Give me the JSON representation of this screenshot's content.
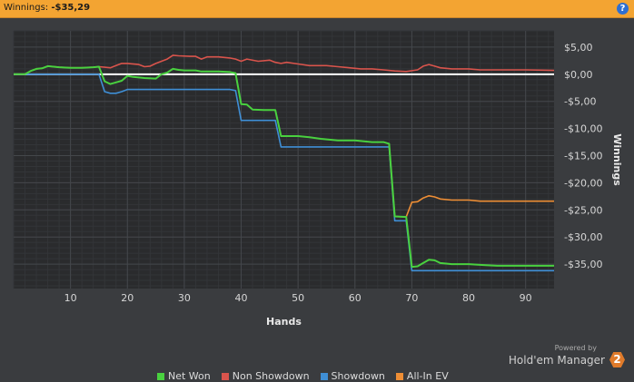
{
  "header": {
    "label": "Winnings:",
    "amount": "-$35,29",
    "help_label": "?"
  },
  "branding": {
    "powered_by": "Powered by",
    "name": "Hold'em Manager",
    "badge": "2"
  },
  "colors": {
    "net_won": "#49d13f",
    "non_showdown": "#d9544c",
    "showdown": "#3f8fd6",
    "all_in_ev": "#ee8e35",
    "zero_line": "#ffffff"
  },
  "chart_data": {
    "type": "line",
    "title": "",
    "xlabel": "Hands",
    "ylabel": "Winnings",
    "xlim": [
      0,
      95
    ],
    "ylim": [
      -39.5,
      8
    ],
    "grid": true,
    "legend_position": "bottom",
    "x_ticks": [
      10,
      20,
      30,
      40,
      50,
      60,
      70,
      80,
      90
    ],
    "x_tick_labels": [
      "10",
      "20",
      "30",
      "40",
      "50",
      "60",
      "70",
      "80",
      "90"
    ],
    "y_ticks": [
      5,
      0,
      -5,
      -10,
      -15,
      -20,
      -25,
      -30,
      -35
    ],
    "y_tick_labels": [
      "$5,00",
      "$0,00",
      "-$5,00",
      "-$10,00",
      "-$15,00",
      "-$20,00",
      "-$25,00",
      "-$30,00",
      "-$35,00"
    ],
    "series": [
      {
        "name": "Net Won",
        "color": "#49d13f",
        "points": [
          [
            0,
            0
          ],
          [
            2,
            0
          ],
          [
            3,
            0.6
          ],
          [
            4,
            1
          ],
          [
            5,
            1.1
          ],
          [
            6,
            1.5
          ],
          [
            8,
            1.3
          ],
          [
            10,
            1.2
          ],
          [
            12,
            1.2
          ],
          [
            14,
            1.3
          ],
          [
            15,
            1.4
          ],
          [
            16,
            -1.3
          ],
          [
            17,
            -1.8
          ],
          [
            18,
            -1.5
          ],
          [
            19,
            -1.2
          ],
          [
            20,
            -0.3
          ],
          [
            21,
            -0.5
          ],
          [
            23,
            -0.7
          ],
          [
            25,
            -0.8
          ],
          [
            26,
            0.0
          ],
          [
            27,
            0.3
          ],
          [
            28,
            1.0
          ],
          [
            29,
            0.8
          ],
          [
            30,
            0.7
          ],
          [
            32,
            0.7
          ],
          [
            33,
            0.5
          ],
          [
            36,
            0.5
          ],
          [
            38,
            0.4
          ],
          [
            39,
            0.2
          ],
          [
            40,
            -5.5
          ],
          [
            41,
            -5.6
          ],
          [
            42,
            -6.5
          ],
          [
            44,
            -6.6
          ],
          [
            46,
            -6.6
          ],
          [
            47,
            -11.4
          ],
          [
            48,
            -11.4
          ],
          [
            50,
            -11.4
          ],
          [
            52,
            -11.6
          ],
          [
            54,
            -11.9
          ],
          [
            57,
            -12.2
          ],
          [
            60,
            -12.2
          ],
          [
            63,
            -12.5
          ],
          [
            65,
            -12.5
          ],
          [
            66,
            -12.8
          ],
          [
            67,
            -26.2
          ],
          [
            69,
            -26.3
          ],
          [
            70,
            -35.5
          ],
          [
            71,
            -35.4
          ],
          [
            72,
            -34.8
          ],
          [
            73,
            -34.2
          ],
          [
            74,
            -34.3
          ],
          [
            75,
            -34.8
          ],
          [
            77,
            -35.0
          ],
          [
            80,
            -35.0
          ],
          [
            83,
            -35.2
          ],
          [
            85,
            -35.3
          ],
          [
            90,
            -35.3
          ],
          [
            95,
            -35.3
          ]
        ]
      },
      {
        "name": "Non Showdown",
        "color": "#d9544c",
        "points": [
          [
            0,
            0
          ],
          [
            2,
            0
          ],
          [
            3,
            0.6
          ],
          [
            4,
            1
          ],
          [
            5,
            1.1
          ],
          [
            6,
            1.5
          ],
          [
            8,
            1.3
          ],
          [
            10,
            1.2
          ],
          [
            12,
            1.2
          ],
          [
            14,
            1.3
          ],
          [
            15,
            1.4
          ],
          [
            16,
            1.3
          ],
          [
            17,
            1.2
          ],
          [
            18,
            1.6
          ],
          [
            19,
            2.0
          ],
          [
            20,
            2.0
          ],
          [
            22,
            1.8
          ],
          [
            23,
            1.4
          ],
          [
            24,
            1.5
          ],
          [
            25,
            2.0
          ],
          [
            26,
            2.4
          ],
          [
            27,
            2.8
          ],
          [
            28,
            3.5
          ],
          [
            29,
            3.4
          ],
          [
            31,
            3.3
          ],
          [
            32,
            3.3
          ],
          [
            33,
            2.8
          ],
          [
            34,
            3.2
          ],
          [
            36,
            3.2
          ],
          [
            38,
            3.0
          ],
          [
            39,
            2.8
          ],
          [
            40,
            2.4
          ],
          [
            41,
            2.8
          ],
          [
            43,
            2.4
          ],
          [
            45,
            2.6
          ],
          [
            46,
            2.2
          ],
          [
            47,
            2.0
          ],
          [
            48,
            2.2
          ],
          [
            50,
            1.9
          ],
          [
            52,
            1.6
          ],
          [
            55,
            1.6
          ],
          [
            57,
            1.4
          ],
          [
            59,
            1.2
          ],
          [
            61,
            1.0
          ],
          [
            63,
            1.0
          ],
          [
            65,
            0.8
          ],
          [
            67,
            0.6
          ],
          [
            69,
            0.5
          ],
          [
            71,
            0.8
          ],
          [
            72,
            1.5
          ],
          [
            73,
            1.8
          ],
          [
            74,
            1.5
          ],
          [
            75,
            1.2
          ],
          [
            77,
            1.0
          ],
          [
            80,
            1.0
          ],
          [
            82,
            0.8
          ],
          [
            85,
            0.8
          ],
          [
            90,
            0.8
          ],
          [
            95,
            0.7
          ]
        ]
      },
      {
        "name": "Showdown",
        "color": "#3f8fd6",
        "points": [
          [
            0,
            0
          ],
          [
            15,
            0
          ],
          [
            16,
            -3.2
          ],
          [
            17,
            -3.5
          ],
          [
            18,
            -3.5
          ],
          [
            19,
            -3.2
          ],
          [
            20,
            -2.8
          ],
          [
            22,
            -2.8
          ],
          [
            25,
            -2.8
          ],
          [
            28,
            -2.8
          ],
          [
            30,
            -2.8
          ],
          [
            36,
            -2.8
          ],
          [
            38,
            -2.8
          ],
          [
            39,
            -3.0
          ],
          [
            40,
            -8.5
          ],
          [
            46,
            -8.5
          ],
          [
            47,
            -13.4
          ],
          [
            50,
            -13.4
          ],
          [
            55,
            -13.4
          ],
          [
            60,
            -13.4
          ],
          [
            65,
            -13.4
          ],
          [
            66,
            -13.4
          ],
          [
            67,
            -27.0
          ],
          [
            69,
            -27.0
          ],
          [
            70,
            -36.2
          ],
          [
            71,
            -36.2
          ],
          [
            80,
            -36.2
          ],
          [
            95,
            -36.2
          ]
        ]
      },
      {
        "name": "All-In EV",
        "color": "#ee8e35",
        "points": [
          [
            66,
            -13.1
          ],
          [
            67,
            -26.2
          ],
          [
            69,
            -26.3
          ],
          [
            70,
            -23.6
          ],
          [
            71,
            -23.5
          ],
          [
            72,
            -22.8
          ],
          [
            73,
            -22.4
          ],
          [
            74,
            -22.6
          ],
          [
            75,
            -23.0
          ],
          [
            77,
            -23.2
          ],
          [
            80,
            -23.2
          ],
          [
            82,
            -23.4
          ],
          [
            85,
            -23.4
          ],
          [
            90,
            -23.4
          ],
          [
            95,
            -23.4
          ]
        ]
      }
    ]
  }
}
